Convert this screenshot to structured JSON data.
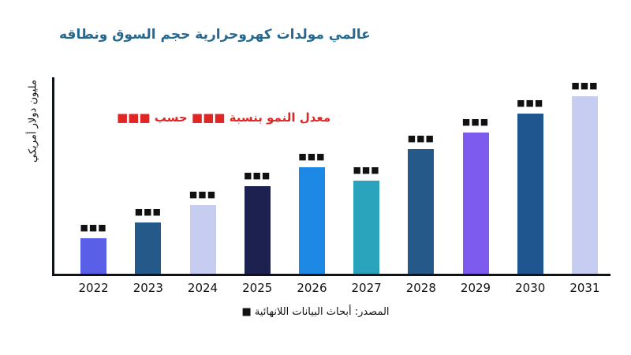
{
  "page": {
    "title": "عالمي مولدات كهروحرارية حجم السوق ونطاقه",
    "y_axis_label": "مليون دولار أمريكي",
    "growth_note": "معدل النمو بنسبة ■■■ حسب ■■■",
    "source": "المصدر: أبحاث البيانات اللانهائية ■",
    "colors": {
      "title": "#26688e",
      "growth_note": "#e02525",
      "axis": "#101318",
      "text": "#111111",
      "background": "#ffffff"
    }
  },
  "chart_data": {
    "type": "bar",
    "title": "عالمي مولدات كهروحرارية حجم السوق ونطاقه",
    "ylabel": "مليون دولار أمريكي",
    "xlabel": "",
    "categories": [
      "2022",
      "2023",
      "2024",
      "2025",
      "2026",
      "2027",
      "2028",
      "2029",
      "2030",
      "2031"
    ],
    "values": [
      46,
      66,
      88,
      112,
      137,
      119,
      160,
      181,
      205,
      228
    ],
    "values_unit": "relative height (numeric labels are redacted placeholder boxes in the image)",
    "value_labels": [
      "■■■",
      "■■■",
      "■■■",
      "■■■",
      "■■■",
      "■■■",
      "■■■",
      "■■■",
      "■■■",
      "■■■"
    ],
    "bar_colors": [
      "#5a5fe8",
      "#24598a",
      "#c7cdf1",
      "#1c2150",
      "#1e88e5",
      "#2aa3bd",
      "#24598a",
      "#7e5bef",
      "#20568f",
      "#c7cdf1"
    ],
    "ylim": [
      0,
      250
    ],
    "grid": false,
    "legend": false,
    "annotation": "معدل النمو بنسبة ■■■ حسب ■■■"
  }
}
